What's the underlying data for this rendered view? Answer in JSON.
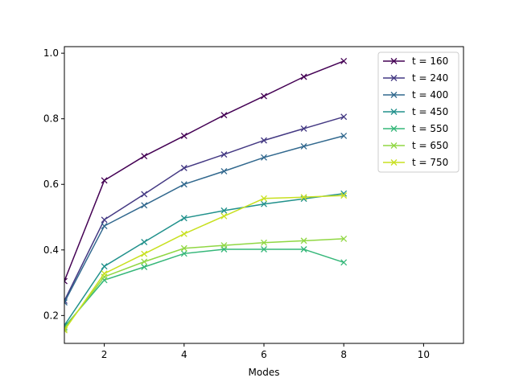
{
  "chart_data": {
    "type": "line",
    "title": "",
    "xlabel": "Modes",
    "ylabel": "",
    "xlim": [
      1,
      11
    ],
    "ylim": [
      0.115,
      1.02
    ],
    "xticks": [
      2,
      4,
      6,
      8,
      10
    ],
    "xtick_labels": [
      "2",
      "4",
      "6",
      "8",
      "10"
    ],
    "yticks": [
      0.2,
      0.4,
      0.6,
      0.8,
      1.0
    ],
    "ytick_labels": [
      "0.2",
      "0.4",
      "0.6",
      "0.8",
      "1.0"
    ],
    "grid": false,
    "legend_position": "top-right",
    "marker": "x",
    "x": [
      1,
      2,
      3,
      4,
      5,
      6,
      7,
      8
    ],
    "series": [
      {
        "name": "t = 160",
        "color": "#440154",
        "values": [
          0.305,
          0.612,
          0.686,
          0.748,
          0.811,
          0.869,
          0.928,
          0.976
        ]
      },
      {
        "name": "t = 240",
        "color": "#443983",
        "values": [
          0.245,
          0.492,
          0.57,
          0.65,
          0.691,
          0.734,
          0.77,
          0.806
        ]
      },
      {
        "name": "t = 400",
        "color": "#31688e",
        "values": [
          0.24,
          0.473,
          0.536,
          0.6,
          0.64,
          0.682,
          0.716,
          0.748
        ]
      },
      {
        "name": "t = 450",
        "color": "#21918c",
        "values": [
          0.17,
          0.35,
          0.424,
          0.497,
          0.52,
          0.54,
          0.556,
          0.572
        ]
      },
      {
        "name": "t = 550",
        "color": "#35b779",
        "values": [
          0.165,
          0.308,
          0.348,
          0.389,
          0.402,
          0.402,
          0.402,
          0.362
        ]
      },
      {
        "name": "t = 650",
        "color": "#90d743",
        "values": [
          0.16,
          0.318,
          0.364,
          0.405,
          0.414,
          0.422,
          0.428,
          0.434
        ]
      },
      {
        "name": "t = 750",
        "color": "#c8e020",
        "values": [
          0.155,
          0.328,
          0.388,
          0.449,
          0.503,
          0.557,
          0.561,
          0.566
        ]
      }
    ]
  }
}
